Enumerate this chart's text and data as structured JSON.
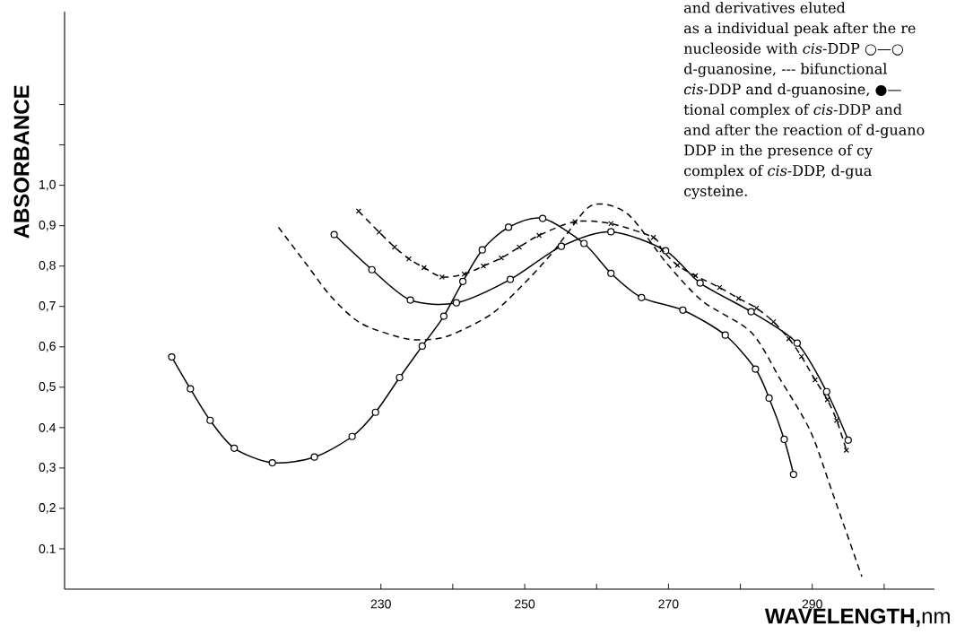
{
  "chart_data": {
    "type": "line",
    "xlabel": "**WAVELENGTH,**nm",
    "ylabel": "ABSORBANCE",
    "xlim": [
      186,
      307
    ],
    "ylim": [
      0,
      1.43
    ],
    "xticks": [
      230,
      {
        "value": 240,
        "label": null
      },
      250,
      {
        "value": 260,
        "label": null
      },
      270,
      {
        "value": 280,
        "label": null
      },
      290,
      {
        "value": 300,
        "label": null
      }
    ],
    "yticks": [
      {
        "value": 0.1,
        "label": "0.1"
      },
      {
        "value": 0.2,
        "label": "0,2"
      },
      {
        "value": 0.3,
        "label": "0,3"
      },
      {
        "value": 0.4,
        "label": "0.4"
      },
      {
        "value": 0.5,
        "label": "0,5"
      },
      {
        "value": 0.6,
        "label": "0,6"
      },
      {
        "value": 0.7,
        "label": "0,7"
      },
      {
        "value": 0.8,
        "label": "0,8"
      },
      {
        "value": 0.9,
        "label": "0,9"
      },
      {
        "value": 1.0,
        "label": "1,0"
      },
      {
        "value": 1.1,
        "label": null
      },
      {
        "value": 1.2,
        "label": null
      }
    ],
    "series": [
      {
        "color": "#000000",
        "marker": "circle",
        "line_style": "solid",
        "x": [
          200.9,
          203.5,
          206.25,
          209.6,
          214.9,
          220.75,
          226,
          229.25,
          232.6,
          235.75,
          238.75,
          241.4,
          244.1,
          247.75,
          252.5,
          258.25,
          262,
          266.25,
          272,
          277.9,
          282.1,
          284,
          286.1,
          287.4
        ],
        "values": [
          0.575,
          0.496,
          0.418,
          0.349,
          0.313,
          0.327,
          0.378,
          0.438,
          0.524,
          0.602,
          0.676,
          0.762,
          0.84,
          0.896,
          0.918,
          0.856,
          0.782,
          0.722,
          0.691,
          0.629,
          0.545,
          0.473,
          0.371,
          0.284
        ]
      },
      {
        "color": "#000000",
        "marker": "none",
        "line_style": "dashed",
        "x": [
          215.75,
          219.75,
          223.1,
          227.25,
          233.5,
          237.75,
          240.6,
          245.6,
          250.6,
          254,
          255.6,
          259.4,
          264.25,
          269.75,
          274.75,
          281.5,
          285.6,
          289.75,
          292.75,
          296.9
        ],
        "values": [
          0.896,
          0.802,
          0.724,
          0.658,
          0.62,
          0.62,
          0.636,
          0.684,
          0.769,
          0.836,
          0.873,
          0.951,
          0.93,
          0.807,
          0.713,
          0.636,
          0.518,
          0.391,
          0.242,
          0.031
        ]
      },
      {
        "color": "#000000",
        "marker": "circle",
        "line_style": "solid",
        "x": [
          223.5,
          228.75,
          234.1,
          240.5,
          248,
          255.1,
          262,
          269.6,
          274.4,
          281.5,
          287.9,
          292,
          295
        ],
        "values": [
          0.878,
          0.791,
          0.716,
          0.709,
          0.767,
          0.849,
          0.885,
          0.838,
          0.758,
          0.687,
          0.609,
          0.489,
          0.369
        ]
      },
      {
        "color": "#000000",
        "marker": "cross",
        "line_style": "dashed",
        "x": [
          226.9,
          229.75,
          231.9,
          233.9,
          236,
          238.5,
          241.6,
          244.25,
          246.75,
          249.25,
          252,
          257,
          262,
          267.9,
          269.1,
          271.25,
          273.75,
          277.1,
          279.75,
          282.25,
          284.6,
          286.75,
          288.5,
          290.4,
          292.1,
          293.4,
          294.75
        ],
        "values": [
          0.936,
          0.884,
          0.847,
          0.818,
          0.796,
          0.773,
          0.78,
          0.8,
          0.82,
          0.847,
          0.876,
          0.91,
          0.905,
          0.871,
          0.84,
          0.802,
          0.776,
          0.747,
          0.72,
          0.696,
          0.662,
          0.62,
          0.576,
          0.518,
          0.469,
          0.418,
          0.344
        ]
      }
    ],
    "annotations": [
      "and derivatives eluted",
      "as a individual peak after the re",
      "nucleoside with *cis*-DDP ○—○",
      "d-guanosine, --- bifunctional",
      "*cis*-DDP and d-guanosine, ●—",
      "tional complex of *cis*-DDP and",
      "and after the reaction of d-guano",
      "DDP in the presence of cy",
      "complex of *cis*-DDP, d-gua",
      "cysteine."
    ]
  }
}
